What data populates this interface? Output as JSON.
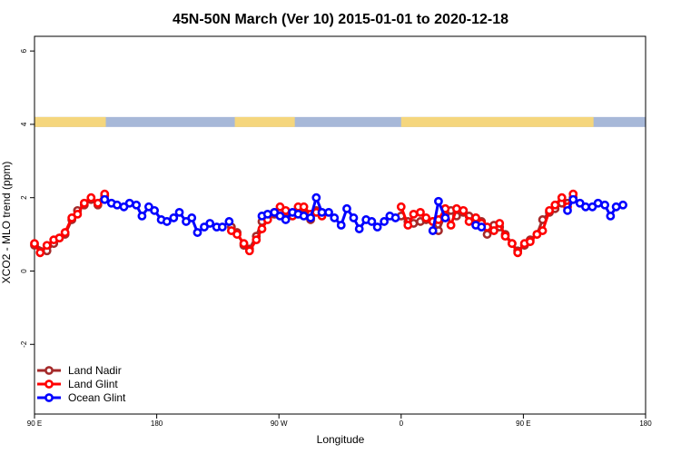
{
  "chart_data": {
    "type": "line",
    "title": "45N-50N March (Ver 10)   2015-01-01 to 2020-12-18",
    "xlabel": "Longitude",
    "ylabel": "XCO2 - MLO trend (ppm)",
    "xlim": [
      0,
      540
    ],
    "ylim": [
      -3.9,
      6.4
    ],
    "x_ticks": [
      {
        "value": 0,
        "label": "90 E"
      },
      {
        "value": 108,
        "label": "180"
      },
      {
        "value": 216,
        "label": "90 W"
      },
      {
        "value": 324,
        "label": "0"
      },
      {
        "value": 432,
        "label": "90 E"
      },
      {
        "value": 540,
        "label": "180"
      }
    ],
    "y_ticks": [
      {
        "value": -2,
        "label": "-2"
      },
      {
        "value": 0,
        "label": "0"
      },
      {
        "value": 2,
        "label": "2"
      },
      {
        "value": 4,
        "label": "4"
      },
      {
        "value": 6,
        "label": "6"
      }
    ],
    "land_ocean_band": {
      "y": 4.2,
      "land_color": "#f5d67d",
      "ocean_color": "#a7b8d8",
      "land_ranges": [
        [
          0,
          63
        ],
        [
          177,
          230
        ],
        [
          324,
          494
        ]
      ]
    },
    "series": [
      {
        "name": "Land Nadir",
        "color": "#a52a2a",
        "points": [
          [
            0,
            0.7
          ],
          [
            11,
            0.55
          ],
          [
            17,
            0.75
          ],
          [
            22,
            0.9
          ],
          [
            27,
            1.0
          ],
          [
            33,
            1.4
          ],
          [
            38,
            1.65
          ],
          [
            44,
            1.8
          ],
          [
            50,
            1.95
          ],
          [
            56,
            1.8
          ],
          [
            62,
            2.05
          ],
          [
            174,
            1.2
          ],
          [
            179,
            1.05
          ],
          [
            185,
            0.7
          ],
          [
            190,
            0.6
          ],
          [
            196,
            0.95
          ],
          [
            201,
            1.35
          ],
          [
            206,
            1.45
          ],
          [
            212,
            1.55
          ],
          [
            217,
            1.6
          ],
          [
            222,
            1.6
          ],
          [
            228,
            1.55
          ],
          [
            233,
            1.6
          ],
          [
            238,
            1.55
          ],
          [
            244,
            1.4
          ],
          [
            249,
            1.65
          ],
          [
            254,
            1.55
          ],
          [
            324,
            1.5
          ],
          [
            330,
            1.35
          ],
          [
            335,
            1.3
          ],
          [
            341,
            1.35
          ],
          [
            346,
            1.4
          ],
          [
            352,
            1.35
          ],
          [
            357,
            1.1
          ],
          [
            363,
            1.55
          ],
          [
            368,
            1.65
          ],
          [
            373,
            1.5
          ],
          [
            379,
            1.6
          ],
          [
            384,
            1.5
          ],
          [
            390,
            1.45
          ],
          [
            395,
            1.35
          ],
          [
            400,
            1.0
          ],
          [
            406,
            1.25
          ],
          [
            411,
            1.2
          ],
          [
            416,
            1.0
          ],
          [
            422,
            0.75
          ],
          [
            427,
            0.55
          ],
          [
            433,
            0.7
          ],
          [
            438,
            0.85
          ],
          [
            444,
            1.0
          ],
          [
            449,
            1.4
          ],
          [
            455,
            1.6
          ],
          [
            460,
            1.7
          ],
          [
            466,
            1.85
          ],
          [
            471,
            1.85
          ],
          [
            476,
            2.0
          ]
        ]
      },
      {
        "name": "Land Glint",
        "color": "#ff0000",
        "points": [
          [
            0,
            0.75
          ],
          [
            5,
            0.5
          ],
          [
            11,
            0.7
          ],
          [
            17,
            0.85
          ],
          [
            22,
            0.9
          ],
          [
            27,
            1.05
          ],
          [
            33,
            1.45
          ],
          [
            38,
            1.55
          ],
          [
            44,
            1.85
          ],
          [
            50,
            2.0
          ],
          [
            56,
            1.85
          ],
          [
            62,
            2.1
          ],
          [
            174,
            1.1
          ],
          [
            179,
            1.0
          ],
          [
            185,
            0.75
          ],
          [
            190,
            0.55
          ],
          [
            196,
            0.85
          ],
          [
            201,
            1.15
          ],
          [
            206,
            1.4
          ],
          [
            212,
            1.6
          ],
          [
            217,
            1.75
          ],
          [
            222,
            1.65
          ],
          [
            228,
            1.5
          ],
          [
            233,
            1.75
          ],
          [
            238,
            1.75
          ],
          [
            244,
            1.55
          ],
          [
            249,
            1.6
          ],
          [
            254,
            1.5
          ],
          [
            324,
            1.75
          ],
          [
            330,
            1.25
          ],
          [
            335,
            1.55
          ],
          [
            341,
            1.6
          ],
          [
            346,
            1.45
          ],
          [
            352,
            1.35
          ],
          [
            357,
            1.4
          ],
          [
            363,
            1.7
          ],
          [
            368,
            1.25
          ],
          [
            373,
            1.7
          ],
          [
            379,
            1.65
          ],
          [
            384,
            1.35
          ],
          [
            390,
            1.45
          ],
          [
            395,
            1.3
          ],
          [
            400,
            1.2
          ],
          [
            406,
            1.1
          ],
          [
            411,
            1.3
          ],
          [
            416,
            0.95
          ],
          [
            422,
            0.75
          ],
          [
            427,
            0.5
          ],
          [
            433,
            0.75
          ],
          [
            438,
            0.8
          ],
          [
            444,
            1.0
          ],
          [
            449,
            1.1
          ],
          [
            455,
            1.65
          ],
          [
            460,
            1.8
          ],
          [
            466,
            2.0
          ],
          [
            471,
            1.75
          ],
          [
            476,
            2.1
          ]
        ]
      },
      {
        "name": "Ocean Glint",
        "color": "#0000ff",
        "points": [
          [
            62,
            1.95
          ],
          [
            68,
            1.85
          ],
          [
            73,
            1.8
          ],
          [
            79,
            1.75
          ],
          [
            84,
            1.85
          ],
          [
            90,
            1.8
          ],
          [
            95,
            1.5
          ],
          [
            101,
            1.75
          ],
          [
            106,
            1.65
          ],
          [
            112,
            1.4
          ],
          [
            117,
            1.35
          ],
          [
            123,
            1.45
          ],
          [
            128,
            1.6
          ],
          [
            134,
            1.35
          ],
          [
            139,
            1.45
          ],
          [
            144,
            1.05
          ],
          [
            150,
            1.2
          ],
          [
            155,
            1.3
          ],
          [
            161,
            1.2
          ],
          [
            166,
            1.2
          ],
          [
            172,
            1.35
          ],
          [
            201,
            1.5
          ],
          [
            206,
            1.55
          ],
          [
            212,
            1.6
          ],
          [
            217,
            1.5
          ],
          [
            222,
            1.4
          ],
          [
            228,
            1.6
          ],
          [
            233,
            1.55
          ],
          [
            238,
            1.5
          ],
          [
            244,
            1.45
          ],
          [
            249,
            2.0
          ],
          [
            254,
            1.6
          ],
          [
            260,
            1.6
          ],
          [
            265,
            1.45
          ],
          [
            271,
            1.25
          ],
          [
            276,
            1.7
          ],
          [
            282,
            1.45
          ],
          [
            287,
            1.15
          ],
          [
            293,
            1.4
          ],
          [
            298,
            1.35
          ],
          [
            303,
            1.2
          ],
          [
            309,
            1.35
          ],
          [
            314,
            1.5
          ],
          [
            319,
            1.45
          ],
          [
            352,
            1.1
          ],
          [
            357,
            1.9
          ],
          [
            363,
            1.45
          ],
          [
            390,
            1.25
          ],
          [
            395,
            1.2
          ],
          [
            471,
            1.65
          ],
          [
            476,
            1.95
          ],
          [
            482,
            1.85
          ],
          [
            487,
            1.75
          ],
          [
            493,
            1.75
          ],
          [
            498,
            1.85
          ],
          [
            504,
            1.8
          ],
          [
            509,
            1.5
          ],
          [
            514,
            1.75
          ],
          [
            520,
            1.8
          ]
        ]
      }
    ],
    "legend": {
      "position": "bottom-left",
      "entries": [
        "Land Nadir",
        "Land Glint",
        "Ocean Glint"
      ]
    }
  }
}
